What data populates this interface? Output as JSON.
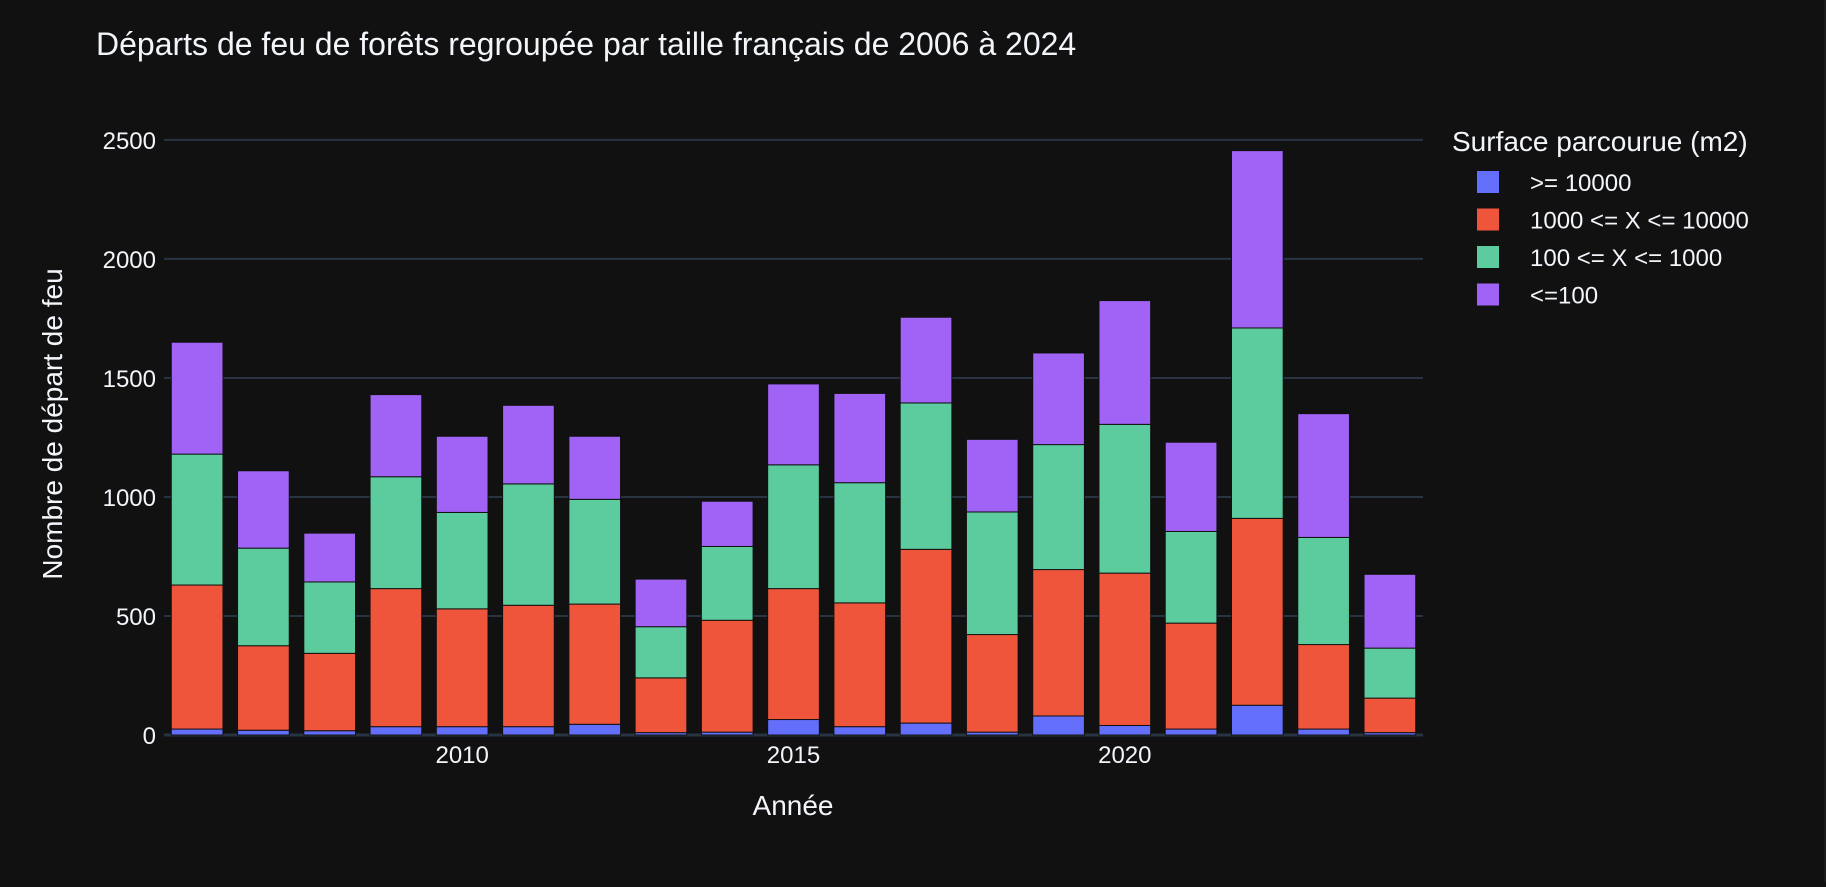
{
  "chart_data": {
    "type": "bar",
    "barmode": "stack",
    "title": "Départs de feu de forêts regroupée par taille français de 2006 à 2024",
    "xlabel": "Année",
    "ylabel": "Nombre de départ de feu",
    "x": [
      2006,
      2007,
      2008,
      2009,
      2010,
      2011,
      2012,
      2013,
      2014,
      2015,
      2016,
      2017,
      2018,
      2019,
      2020,
      2021,
      2022,
      2023,
      2024
    ],
    "xticks": [
      2010,
      2015,
      2020
    ],
    "xtick_labels": [
      "2010",
      "2015",
      "2020"
    ],
    "ylim": [
      0,
      2550
    ],
    "yticks": [
      0,
      500,
      1000,
      1500,
      2000,
      2500
    ],
    "ytick_labels": [
      "0",
      "500",
      "1000",
      "1500",
      "2000",
      "2500"
    ],
    "grid": true,
    "legend": {
      "title": "Surface parcourue (m2)",
      "placement": "right"
    },
    "series": [
      {
        "name": ">= 10000",
        "color": "#636efa",
        "values": [
          25,
          20,
          18,
          35,
          35,
          35,
          45,
          10,
          12,
          65,
          35,
          50,
          12,
          80,
          40,
          25,
          125,
          25,
          10
        ]
      },
      {
        "name": "1000 <= X <= 10000",
        "color": "#ef553b",
        "values": [
          605,
          355,
          325,
          580,
          495,
          510,
          505,
          230,
          470,
          550,
          520,
          730,
          410,
          615,
          640,
          445,
          785,
          355,
          145
        ]
      },
      {
        "name": "100 <= X <= 1000",
        "color": "#5ccb9d",
        "values": [
          550,
          410,
          300,
          470,
          405,
          510,
          440,
          215,
          310,
          520,
          505,
          615,
          515,
          525,
          625,
          385,
          800,
          450,
          210
        ]
      },
      {
        "name": "<=100",
        "color": "#a163f5",
        "values": [
          470,
          325,
          205,
          345,
          320,
          330,
          265,
          200,
          190,
          340,
          375,
          360,
          305,
          385,
          520,
          375,
          745,
          520,
          310
        ]
      }
    ]
  },
  "colors": {
    "background": "#111111",
    "grid": "#283442",
    "text": "#f2f5fa",
    "bar_outline": "#111111"
  }
}
